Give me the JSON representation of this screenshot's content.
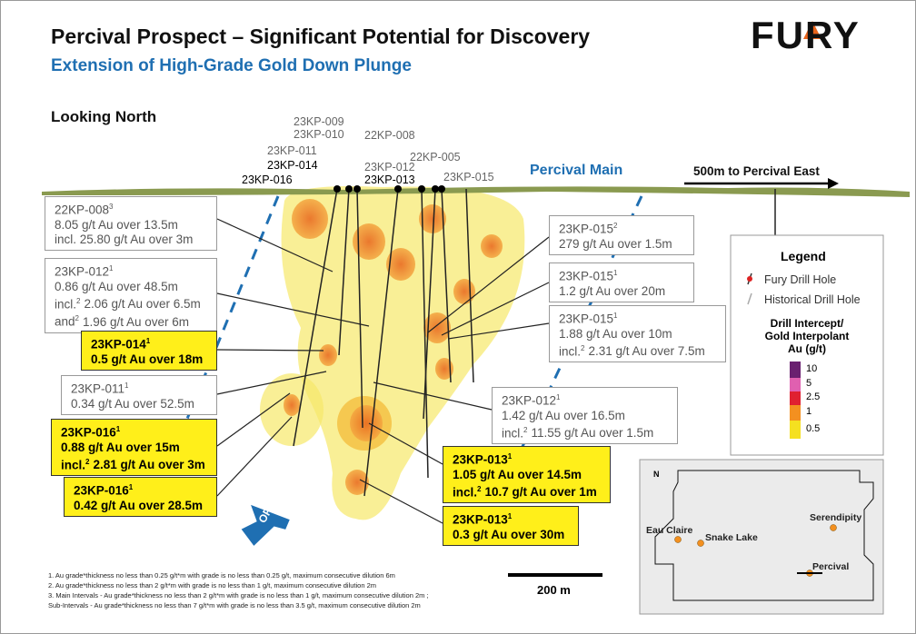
{
  "header": {
    "title": "Percival Prospect – Significant Potential for Discovery",
    "subtitle": "Extension of High-Grade Gold Down Plunge",
    "logo": "FURY"
  },
  "view_label": "Looking North",
  "drill_holes": [
    {
      "label": "23KP-009",
      "fury": false
    },
    {
      "label": "23KP-010",
      "fury": false
    },
    {
      "label": "22KP-008",
      "fury": false
    },
    {
      "label": "23KP-011",
      "fury": false
    },
    {
      "label": "23KP-014",
      "fury": true
    },
    {
      "label": "23KP-016",
      "fury": true
    },
    {
      "label": "23KP-012",
      "fury": false
    },
    {
      "label": "23KP-013",
      "fury": true
    },
    {
      "label": "22KP-005",
      "fury": false
    },
    {
      "label": "23KP-015",
      "fury": false
    }
  ],
  "annotations": {
    "percival_main": "Percival Main",
    "east": "500m to Percival East",
    "open": "OPEN",
    "scale": "200 m"
  },
  "callouts": [
    {
      "hole": "22KP-008",
      "sup": "3",
      "highlight": false,
      "lines": [
        "8.05 g/t Au over 13.5m",
        "incl. 25.80 g/t Au over 3m"
      ]
    },
    {
      "hole": "23KP-012",
      "sup": "1",
      "highlight": false,
      "lines": [
        "0.86 g/t Au over 48.5m",
        {
          "pre": "incl.",
          "sup": "2",
          "post": "2.06 g/t Au over 6.5m"
        },
        {
          "pre": "and",
          "sup": "2",
          "post": "1.96 g/t Au over 6m"
        }
      ]
    },
    {
      "hole": "23KP-014",
      "sup": "1",
      "highlight": true,
      "lines": [
        "0.5 g/t Au over 18m"
      ]
    },
    {
      "hole": "23KP-011",
      "sup": "1",
      "highlight": false,
      "lines": [
        "0.34 g/t Au over 52.5m"
      ]
    },
    {
      "hole": "23KP-016",
      "sup": "1",
      "highlight": true,
      "lines": [
        "0.88 g/t Au over 15m",
        {
          "pre": "incl.",
          "sup": "2",
          "post": "2.81 g/t Au over 3m"
        }
      ]
    },
    {
      "hole": "23KP-016",
      "sup": "1",
      "highlight": true,
      "lines": [
        "0.42 g/t Au over 28.5m"
      ]
    },
    {
      "hole": "23KP-015",
      "sup": "2",
      "highlight": false,
      "lines": [
        "279 g/t Au over 1.5m"
      ]
    },
    {
      "hole": "23KP-015",
      "sup": "1",
      "highlight": false,
      "lines": [
        "1.2 g/t Au over 20m"
      ]
    },
    {
      "hole": "23KP-015",
      "sup": "1",
      "highlight": false,
      "lines": [
        "1.88 g/t Au over 10m",
        {
          "pre": "incl.",
          "sup": "2",
          "post": "2.31 g/t Au over 7.5m"
        }
      ]
    },
    {
      "hole": "23KP-012",
      "sup": "1",
      "highlight": false,
      "lines": [
        "1.42 g/t Au over 16.5m",
        {
          "pre": "incl.",
          "sup": "2",
          "post": "11.55 g/t Au over 1.5m"
        }
      ]
    },
    {
      "hole": "23KP-013",
      "sup": "1",
      "highlight": true,
      "lines": [
        "1.05 g/t Au over 14.5m",
        {
          "pre": "incl.",
          "sup": "2",
          "post": "10.7 g/t Au over 1m"
        }
      ]
    },
    {
      "hole": "23KP-013",
      "sup": "1",
      "highlight": true,
      "lines": [
        "0.3 g/t Au over 30m"
      ]
    }
  ],
  "legend": {
    "title": "Legend",
    "items": [
      "Fury Drill Hole",
      "Historical Drill Hole"
    ],
    "scale_title": [
      "Drill Intercept/",
      "Gold Interpolant",
      "Au (g/t)"
    ],
    "scale": [
      10,
      5,
      2.5,
      1,
      0.5
    ]
  },
  "map": {
    "north": "N",
    "places": [
      "Eau Claire",
      "Snake Lake",
      "Serendipity",
      "Percival"
    ]
  },
  "footnotes": [
    "1. Au grade*thickness no less than 0.25 g/t*m with grade is no less than 0.25 g/t, maximum consecutive dilution 6m",
    "2. Au grade*thickness no less than 2 g/t*m with grade is no less than 1 g/t, maximum consecutive dilution 2m",
    "3. Main Intervals - Au grade*thickness no less than 2 g/t*m with grade is no less than 1 g/t, maximum consecutive dilution 2m ;",
    "Sub-Intervals - Au grade*thickness no less than 7 g/t*m with grade is no less than 3.5 g/t, maximum consecutive dilution 2m"
  ]
}
